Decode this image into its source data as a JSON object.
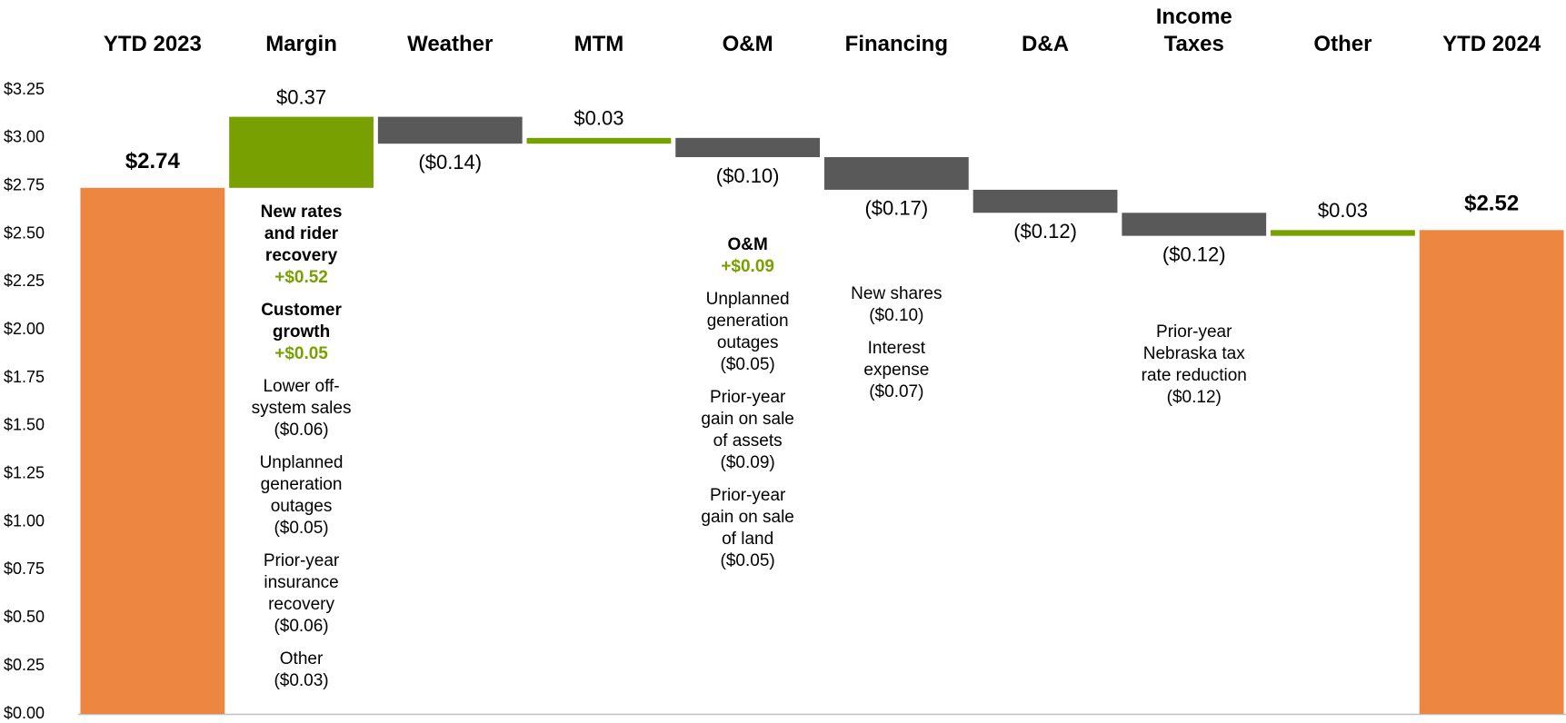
{
  "chart_data": {
    "type": "waterfall",
    "categories": [
      "YTD 2023",
      "Margin",
      "Weather",
      "MTM",
      "O&M",
      "Financing",
      "D&A",
      "Income Taxes",
      "Other",
      "YTD 2024"
    ],
    "values": [
      2.74,
      0.37,
      -0.14,
      0.03,
      -0.1,
      -0.17,
      -0.12,
      -0.12,
      0.03,
      2.52
    ],
    "value_labels": [
      "$2.74",
      "$0.37",
      "($0.14)",
      "$0.03",
      "($0.10)",
      "($0.17)",
      "($0.12)",
      "($0.12)",
      "$0.03",
      "$2.52"
    ],
    "is_total": [
      true,
      false,
      false,
      false,
      false,
      false,
      false,
      false,
      false,
      true
    ],
    "colors": {
      "total": "#ED8641",
      "increase": "#77A000",
      "decrease": "#595959"
    },
    "ylim": [
      0,
      3.25
    ],
    "yticks": [
      {
        "value": 0,
        "label": "$0.00"
      },
      {
        "value": 0.25,
        "label": "$0.25"
      },
      {
        "value": 0.5,
        "label": "$0.50"
      },
      {
        "value": 0.75,
        "label": "$0.75"
      },
      {
        "value": 1,
        "label": "$1.00"
      },
      {
        "value": 1.25,
        "label": "$1.25"
      },
      {
        "value": 1.5,
        "label": "$1.50"
      },
      {
        "value": 1.75,
        "label": "$1.75"
      },
      {
        "value": 2,
        "label": "$2.00"
      },
      {
        "value": 2.25,
        "label": "$2.25"
      },
      {
        "value": 2.5,
        "label": "$2.50"
      },
      {
        "value": 2.75,
        "label": "$2.75"
      },
      {
        "value": 3,
        "label": "$3.00"
      },
      {
        "value": 3.25,
        "label": "$3.25"
      }
    ],
    "grid": false,
    "notes": [
      null,
      [
        {
          "text": "New rates and rider recovery",
          "amount": "+$0.52",
          "emphasis": true
        },
        {
          "text": "Customer growth",
          "amount": "+$0.05",
          "emphasis": true
        },
        {
          "text": "Lower off-system sales",
          "amount": "($0.06)",
          "emphasis": false
        },
        {
          "text": "Unplanned generation outages",
          "amount": "($0.05)",
          "emphasis": false
        },
        {
          "text": "Prior-year insurance recovery",
          "amount": "($0.06)",
          "emphasis": false
        },
        {
          "text": "Other",
          "amount": "($0.03)",
          "emphasis": false
        }
      ],
      null,
      null,
      [
        {
          "text": "O&M",
          "amount": "+$0.09",
          "emphasis": true
        },
        {
          "text": "Unplanned generation outages",
          "amount": "($0.05)",
          "emphasis": false
        },
        {
          "text": "Prior-year gain on sale of assets",
          "amount": "($0.09)",
          "emphasis": false
        },
        {
          "text": "Prior-year gain on sale of land",
          "amount": "($0.05)",
          "emphasis": false
        }
      ],
      [
        {
          "text": "New shares",
          "amount": "($0.10)",
          "emphasis": false
        },
        {
          "text": "Interest expense",
          "amount": "($0.07)",
          "emphasis": false
        }
      ],
      null,
      [
        {
          "text": "Prior-year Nebraska tax rate reduction",
          "amount": "($0.12)",
          "emphasis": false
        }
      ],
      null,
      null
    ]
  }
}
